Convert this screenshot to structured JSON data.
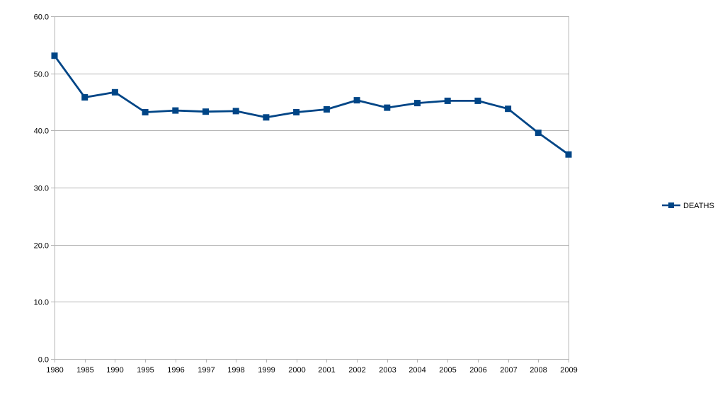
{
  "chart_data": {
    "type": "line",
    "title": "",
    "xlabel": "",
    "ylabel": "",
    "categories": [
      "1980",
      "1985",
      "1990",
      "1995",
      "1996",
      "1997",
      "1998",
      "1999",
      "2000",
      "2001",
      "2002",
      "2003",
      "2004",
      "2005",
      "2006",
      "2007",
      "2008",
      "2009"
    ],
    "series": [
      {
        "name": "DEATHS",
        "color": "#004586",
        "marker": "square",
        "values": [
          53.1,
          45.8,
          46.7,
          43.2,
          43.5,
          43.3,
          43.4,
          42.3,
          43.2,
          43.7,
          45.3,
          44.0,
          44.8,
          45.2,
          45.2,
          43.8,
          39.6,
          35.8
        ]
      }
    ],
    "ylim": [
      0,
      60
    ],
    "yticks": [
      0,
      10,
      20,
      30,
      40,
      50,
      60
    ],
    "ytick_labels": [
      "0.0",
      "10.0",
      "20.0",
      "30.0",
      "40.0",
      "50.0",
      "60.0"
    ],
    "grid": "horizontal",
    "legend_position": "right"
  }
}
